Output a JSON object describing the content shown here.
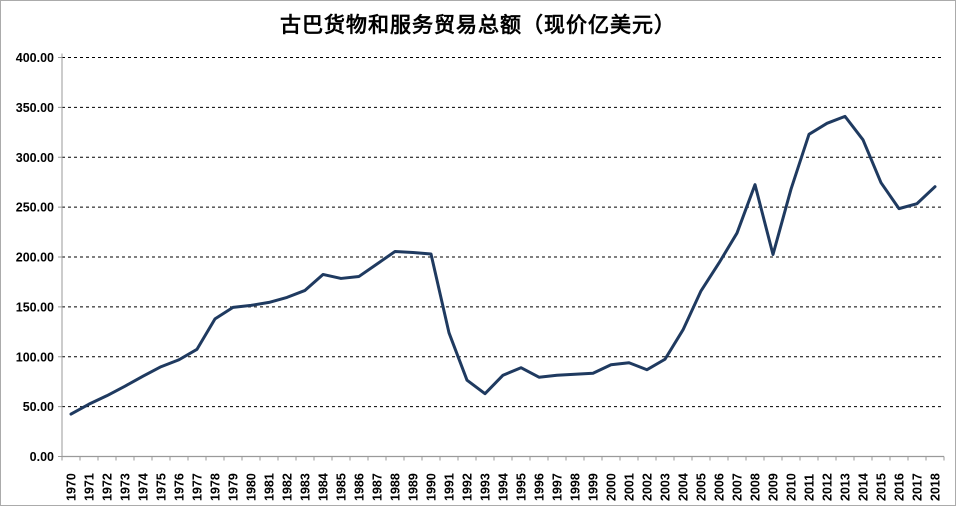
{
  "window": {
    "background_color": "#ffffff",
    "border_color": "#ababab"
  },
  "chart_data": {
    "type": "line",
    "title": "古巴货物和服务贸易总额（现价亿美元）",
    "xlabel": "",
    "ylabel": "",
    "legend": "none",
    "grid": "horizontal-dashed",
    "ylim": [
      0,
      400
    ],
    "ytick_step": 50,
    "ytick_labels": [
      "0.00",
      "50.00",
      "100.00",
      "150.00",
      "200.00",
      "250.00",
      "300.00",
      "350.00",
      "400.00"
    ],
    "categories": [
      "1970",
      "1971",
      "1972",
      "1973",
      "1974",
      "1975",
      "1976",
      "1977",
      "1978",
      "1979",
      "1980",
      "1981",
      "1982",
      "1983",
      "1984",
      "1985",
      "1986",
      "1987",
      "1988",
      "1989",
      "1990",
      "1991",
      "1992",
      "1993",
      "1994",
      "1995",
      "1996",
      "1997",
      "1998",
      "1999",
      "2000",
      "2001",
      "2002",
      "2003",
      "2004",
      "2005",
      "2006",
      "2007",
      "2008",
      "2009",
      "2010",
      "2011",
      "2012",
      "2013",
      "2014",
      "2015",
      "2016",
      "2017",
      "2018"
    ],
    "series": [
      {
        "name": "古巴货物和服务贸易总额（现价亿美元）",
        "color": "#1f3a60",
        "values": [
          42.5,
          52.5,
          61,
          70.5,
          80.5,
          90,
          97,
          107.5,
          138,
          149.5,
          151.5,
          154.5,
          159.5,
          166.5,
          182.5,
          178.5,
          180.5,
          193,
          205.5,
          204.5,
          203,
          124,
          76.5,
          63,
          81.5,
          89,
          79.5,
          81.5,
          82.5,
          83.5,
          92,
          94,
          87,
          97.5,
          127,
          166,
          194,
          224,
          272.5,
          202.5,
          268,
          323,
          334,
          341,
          317.5,
          274.5,
          248.5,
          253.5,
          270.5
        ]
      }
    ],
    "colors": {
      "axis_line": "#9a9a9a",
      "gridline": "#000000",
      "tick_text": "#000000"
    }
  }
}
